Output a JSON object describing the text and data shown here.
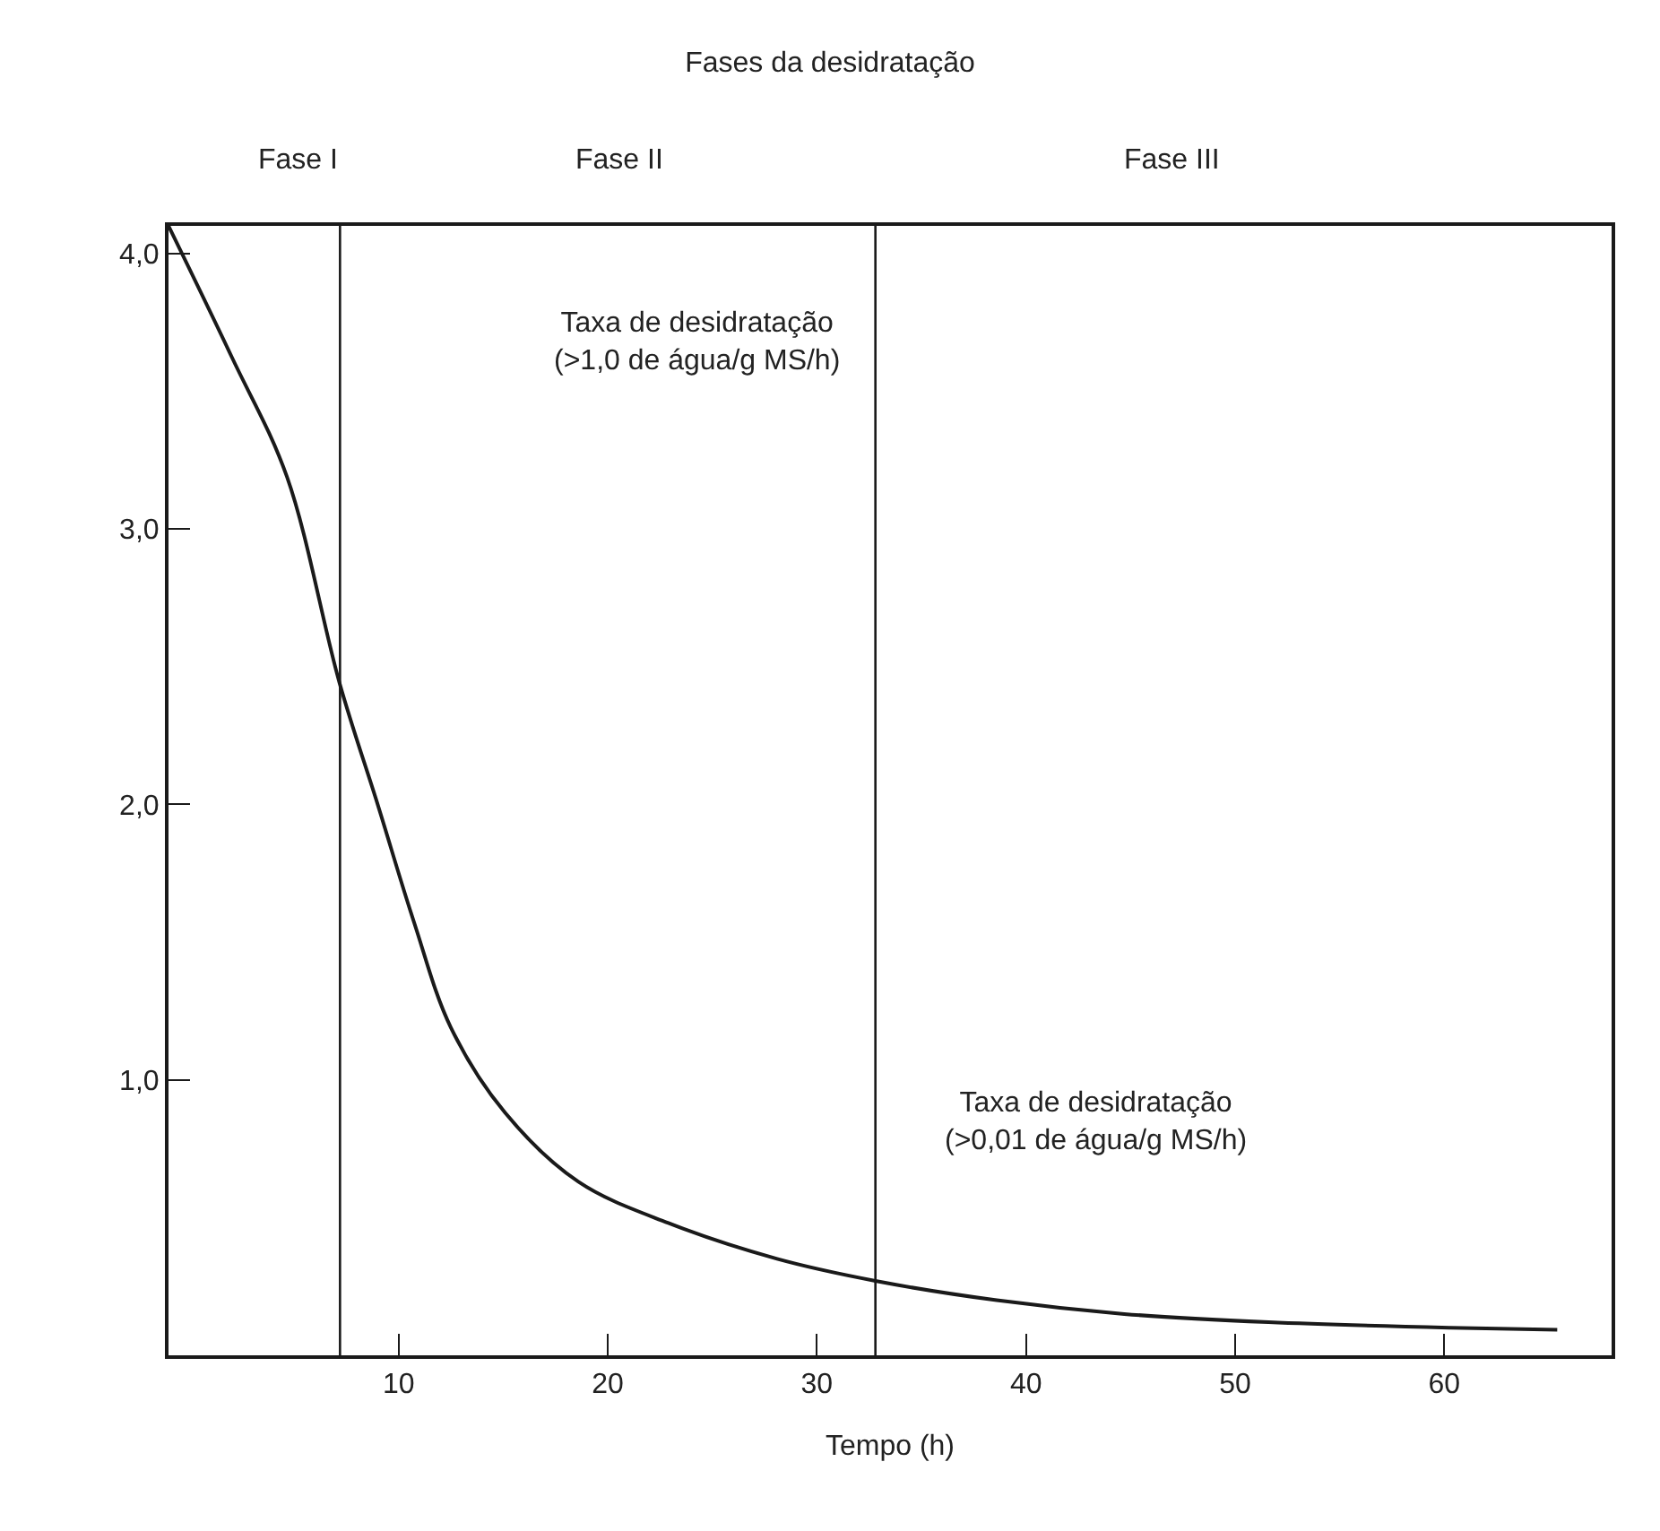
{
  "chart_data": {
    "type": "line",
    "title": "Fases da desidratação",
    "xlabel": "Tempo (h)",
    "x": [
      -1,
      2.05,
      4.66,
      7.18,
      9.0,
      10.75,
      12.5,
      15.1,
      18.6,
      22.9,
      28.1,
      32.8,
      38.6,
      44.7,
      51.6,
      60.3,
      65.4
    ],
    "series": [
      {
        "color": "#1a1a1a",
        "values": [
          4.1,
          3.62,
          3.19,
          2.44,
          2.0,
          1.57,
          1.19,
          0.88,
          0.63,
          0.48,
          0.35,
          0.27,
          0.2,
          0.15,
          0.12,
          0.1,
          0.093
        ]
      }
    ],
    "xlim": [
      -1,
      68
    ],
    "ylim": [
      0,
      4.1
    ],
    "xticks": [
      10,
      20,
      30,
      40,
      50,
      60
    ],
    "yticks": [
      {
        "value": 1,
        "label": "1,0"
      },
      {
        "value": 2,
        "label": "2,0"
      },
      {
        "value": 3,
        "label": "3,0"
      },
      {
        "value": 4,
        "label": "4,0"
      }
    ],
    "ref_lines": [
      {
        "axis": "x",
        "value": 7.2
      },
      {
        "axis": "x",
        "value": 32.8
      }
    ],
    "annotations": [
      "Fase I",
      "Fase II",
      "Fase III",
      "Taxa de desidratação\n(>1,0 de água/g MS/h)",
      "Taxa de desidratação\n(>0,01 de água/g MS/h)"
    ],
    "line_style": "solid",
    "marker": "none"
  }
}
